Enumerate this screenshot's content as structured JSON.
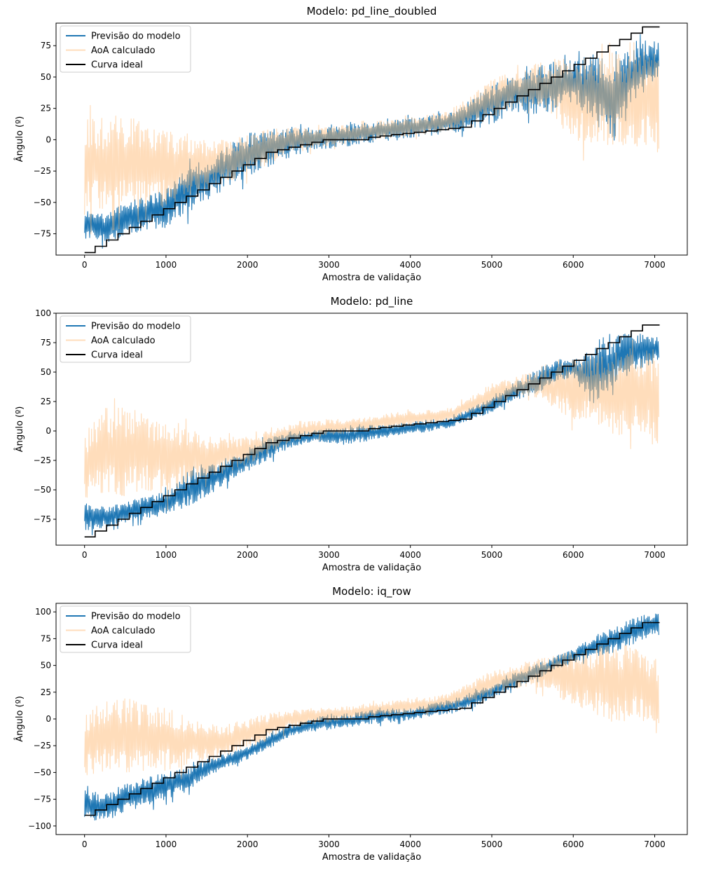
{
  "chart_data": [
    {
      "type": "line",
      "title": "Modelo: pd_line_doubled",
      "xlabel": "Amostra de validação",
      "ylabel": "Ângulo (º)",
      "xlim": [
        -350,
        7400
      ],
      "ylim": [
        -92,
        93
      ],
      "x_ticks": [
        0,
        1000,
        2000,
        3000,
        4000,
        5000,
        6000,
        7000
      ],
      "y_ticks": [
        -75,
        -50,
        -25,
        0,
        25,
        50,
        75
      ],
      "legend_position": "top-left",
      "grid": false,
      "series": [
        {
          "name": "Previsão do modelo",
          "color": "#1f77b4",
          "band": {
            "x": [
              0,
              250,
              500,
              750,
              1000,
              1250,
              1500,
              1750,
              2000,
              2250,
              2500,
              2750,
              3000,
              3250,
              3500,
              3750,
              4000,
              4250,
              4500,
              4750,
              5000,
              5250,
              5500,
              5750,
              6000,
              6250,
              6500,
              6750,
              7050
            ],
            "lower": [
              -80,
              -82,
              -78,
              -74,
              -70,
              -60,
              -48,
              -40,
              -30,
              -22,
              -15,
              -10,
              -7,
              -5,
              -3,
              -1,
              1,
              3,
              5,
              8,
              12,
              22,
              20,
              22,
              30,
              15,
              -10,
              30,
              50
            ],
            "upper": [
              -55,
              -58,
              -50,
              -45,
              -40,
              -20,
              -15,
              -5,
              5,
              8,
              10,
              10,
              10,
              12,
              15,
              17,
              18,
              20,
              22,
              32,
              45,
              50,
              57,
              62,
              65,
              70,
              72,
              80,
              78
            ]
          }
        },
        {
          "name": "AoA calculado",
          "color": "#ffbb78",
          "band": {
            "x": [
              0,
              250,
              500,
              750,
              1000,
              1250,
              1500,
              1750,
              2000,
              2250,
              2500,
              2750,
              3000,
              3250,
              3500,
              3750,
              4000,
              4250,
              4500,
              4750,
              5000,
              5250,
              5500,
              5750,
              6000,
              6250,
              6500,
              6750,
              7050
            ],
            "lower": [
              -60,
              -58,
              -55,
              -50,
              -55,
              -45,
              -40,
              -35,
              -28,
              -20,
              -12,
              -8,
              -5,
              -3,
              -1,
              1,
              3,
              5,
              7,
              12,
              17,
              25,
              28,
              18,
              0,
              -5,
              -5,
              -5,
              -10
            ],
            "upper": [
              20,
              18,
              20,
              15,
              10,
              5,
              0,
              0,
              5,
              8,
              10,
              10,
              10,
              12,
              14,
              16,
              18,
              20,
              25,
              35,
              48,
              55,
              60,
              65,
              65,
              68,
              70,
              70,
              70
            ]
          }
        },
        {
          "name": "Curva ideal",
          "color": "#000000",
          "step": {
            "edges": [
              0,
              130,
              270,
              410,
              550,
              690,
              830,
              970,
              1110,
              1250,
              1390,
              1530,
              1670,
              1810,
              1950,
              2090,
              2230,
              2370,
              2510,
              2650,
              2790,
              2930,
              3070,
              3210,
              3350,
              3490,
              3630,
              3770,
              3910,
              4050,
              4190,
              4330,
              4470,
              4610,
              4750,
              4890,
              5030,
              5170,
              5310,
              5450,
              5590,
              5730,
              5870,
              6010,
              6150,
              6290,
              6430,
              6570,
              6710,
              6850,
              7060
            ],
            "levels": [
              -90,
              -85,
              -80,
              -75,
              -70,
              -65,
              -60,
              -55,
              -50,
              -45,
              -40,
              -35,
              -30,
              -25,
              -20,
              -15,
              -10,
              -8,
              -6,
              -4,
              -2,
              0,
              0,
              0,
              0,
              2,
              3,
              4,
              5,
              6,
              7,
              8,
              9,
              10,
              15,
              20,
              25,
              30,
              35,
              40,
              45,
              50,
              55,
              60,
              65,
              70,
              75,
              80,
              85,
              90
            ]
          }
        }
      ]
    },
    {
      "type": "line",
      "title": "Modelo: pd_line",
      "xlabel": "Amostra de validação",
      "ylabel": "Ângulo (º)",
      "xlim": [
        -350,
        7400
      ],
      "ylim": [
        -97,
        100
      ],
      "x_ticks": [
        0,
        1000,
        2000,
        3000,
        4000,
        5000,
        6000,
        7000
      ],
      "y_ticks": [
        -75,
        -50,
        -25,
        0,
        25,
        50,
        75,
        100
      ],
      "legend_position": "top-left",
      "grid": false,
      "series": [
        {
          "name": "Previsão do modelo",
          "color": "#1f77b4",
          "band": {
            "x": [
              0,
              250,
              500,
              750,
              1000,
              1250,
              1500,
              1750,
              2000,
              2250,
              2500,
              2750,
              3000,
              3250,
              3500,
              3750,
              4000,
              4250,
              4500,
              4750,
              5000,
              5250,
              5500,
              5750,
              6000,
              6250,
              6500,
              6750,
              7050
            ],
            "lower": [
              -85,
              -82,
              -78,
              -75,
              -72,
              -65,
              -55,
              -45,
              -35,
              -25,
              -15,
              -10,
              -10,
              -12,
              -8,
              -5,
              -3,
              0,
              3,
              10,
              15,
              25,
              30,
              40,
              45,
              20,
              40,
              50,
              60
            ],
            "upper": [
              -60,
              -65,
              -60,
              -55,
              -50,
              -35,
              -30,
              -25,
              -15,
              -5,
              0,
              0,
              2,
              3,
              5,
              5,
              8,
              10,
              12,
              20,
              30,
              40,
              50,
              60,
              62,
              70,
              80,
              85,
              80
            ]
          }
        },
        {
          "name": "AoA calculado",
          "color": "#ffbb78",
          "band": {
            "x": [
              0,
              250,
              500,
              750,
              1000,
              1250,
              1500,
              1750,
              2000,
              2250,
              2500,
              2750,
              3000,
              3250,
              3500,
              3750,
              4000,
              4250,
              4500,
              4750,
              5000,
              5250,
              5500,
              5750,
              6000,
              6250,
              6500,
              6750,
              7050
            ],
            "lower": [
              -60,
              -55,
              -55,
              -50,
              -55,
              -45,
              -40,
              -35,
              -28,
              -20,
              -10,
              -6,
              -4,
              -2,
              0,
              2,
              4,
              6,
              8,
              15,
              20,
              30,
              30,
              20,
              10,
              5,
              -5,
              0,
              -15
            ],
            "upper": [
              0,
              20,
              20,
              15,
              10,
              5,
              -5,
              -5,
              -5,
              0,
              5,
              8,
              10,
              10,
              12,
              15,
              17,
              18,
              20,
              30,
              40,
              45,
              50,
              55,
              60,
              65,
              70,
              70,
              70
            ]
          }
        },
        {
          "name": "Curva ideal",
          "color": "#000000",
          "step": {
            "edges": [
              0,
              130,
              270,
              410,
              550,
              690,
              830,
              970,
              1110,
              1250,
              1390,
              1530,
              1670,
              1810,
              1950,
              2090,
              2230,
              2370,
              2510,
              2650,
              2790,
              2930,
              3070,
              3210,
              3350,
              3490,
              3630,
              3770,
              3910,
              4050,
              4190,
              4330,
              4470,
              4610,
              4750,
              4890,
              5030,
              5170,
              5310,
              5450,
              5590,
              5730,
              5870,
              6010,
              6150,
              6290,
              6430,
              6570,
              6710,
              6850,
              7060
            ],
            "levels": [
              -90,
              -85,
              -80,
              -75,
              -70,
              -65,
              -60,
              -55,
              -50,
              -45,
              -40,
              -35,
              -30,
              -25,
              -20,
              -15,
              -10,
              -8,
              -6,
              -4,
              -2,
              0,
              0,
              0,
              0,
              2,
              3,
              4,
              5,
              6,
              7,
              8,
              9,
              10,
              15,
              20,
              25,
              30,
              35,
              40,
              45,
              50,
              55,
              60,
              65,
              70,
              75,
              80,
              85,
              90
            ]
          }
        }
      ]
    },
    {
      "type": "line",
      "title": "Modelo: iq_row",
      "xlabel": "Amostra de validação",
      "ylabel": "Ângulo (º)",
      "xlim": [
        -350,
        7400
      ],
      "ylim": [
        -108,
        108
      ],
      "x_ticks": [
        0,
        1000,
        2000,
        3000,
        4000,
        5000,
        6000,
        7000
      ],
      "y_ticks": [
        -100,
        -75,
        -50,
        -25,
        0,
        25,
        50,
        75,
        100
      ],
      "legend_position": "top-left",
      "grid": false,
      "series": [
        {
          "name": "Previsão do modelo",
          "color": "#1f77b4",
          "band": {
            "x": [
              0,
              250,
              500,
              750,
              1000,
              1250,
              1500,
              1750,
              2000,
              2250,
              2500,
              2750,
              3000,
              3250,
              3500,
              3750,
              4000,
              4250,
              4500,
              4750,
              5000,
              5250,
              5500,
              5750,
              6000,
              6250,
              6500,
              6750,
              7050
            ],
            "lower": [
              -95,
              -95,
              -88,
              -82,
              -75,
              -68,
              -55,
              -45,
              -38,
              -28,
              -18,
              -12,
              -10,
              -8,
              -5,
              -3,
              -1,
              2,
              5,
              10,
              18,
              28,
              35,
              45,
              52,
              58,
              62,
              70,
              82
            ],
            "upper": [
              -65,
              -70,
              -60,
              -55,
              -50,
              -45,
              -38,
              -32,
              -25,
              -15,
              -5,
              0,
              5,
              5,
              8,
              10,
              10,
              15,
              18,
              25,
              32,
              42,
              50,
              58,
              65,
              78,
              85,
              95,
              100
            ]
          }
        },
        {
          "name": "AoA calculado",
          "color": "#ffbb78",
          "band": {
            "x": [
              0,
              250,
              500,
              750,
              1000,
              1250,
              1500,
              1750,
              2000,
              2250,
              2500,
              2750,
              3000,
              3250,
              3500,
              3750,
              4000,
              4250,
              4500,
              4750,
              5000,
              5250,
              5500,
              5750,
              6000,
              6250,
              6500,
              6750,
              7050
            ],
            "lower": [
              -55,
              -50,
              -50,
              -50,
              -48,
              -45,
              -40,
              -35,
              -28,
              -20,
              -10,
              -6,
              -3,
              -1,
              1,
              3,
              5,
              7,
              10,
              15,
              22,
              28,
              30,
              25,
              10,
              5,
              -5,
              0,
              -15
            ],
            "upper": [
              5,
              20,
              20,
              15,
              10,
              5,
              -5,
              -5,
              0,
              5,
              8,
              10,
              10,
              12,
              15,
              17,
              18,
              20,
              25,
              35,
              45,
              50,
              55,
              60,
              65,
              68,
              70,
              68,
              55
            ]
          }
        },
        {
          "name": "Curva ideal",
          "color": "#000000",
          "step": {
            "edges": [
              0,
              130,
              270,
              410,
              550,
              690,
              830,
              970,
              1110,
              1250,
              1390,
              1530,
              1670,
              1810,
              1950,
              2090,
              2230,
              2370,
              2510,
              2650,
              2790,
              2930,
              3070,
              3210,
              3350,
              3490,
              3630,
              3770,
              3910,
              4050,
              4190,
              4330,
              4470,
              4610,
              4750,
              4890,
              5030,
              5170,
              5310,
              5450,
              5590,
              5730,
              5870,
              6010,
              6150,
              6290,
              6430,
              6570,
              6710,
              6850,
              7060
            ],
            "levels": [
              -90,
              -85,
              -80,
              -75,
              -70,
              -65,
              -60,
              -55,
              -50,
              -45,
              -40,
              -35,
              -30,
              -25,
              -20,
              -15,
              -10,
              -8,
              -6,
              -4,
              -2,
              0,
              0,
              0,
              0,
              2,
              3,
              4,
              5,
              6,
              7,
              8,
              9,
              10,
              15,
              20,
              25,
              30,
              35,
              40,
              45,
              50,
              55,
              60,
              65,
              70,
              75,
              80,
              85,
              90
            ]
          }
        }
      ]
    }
  ]
}
